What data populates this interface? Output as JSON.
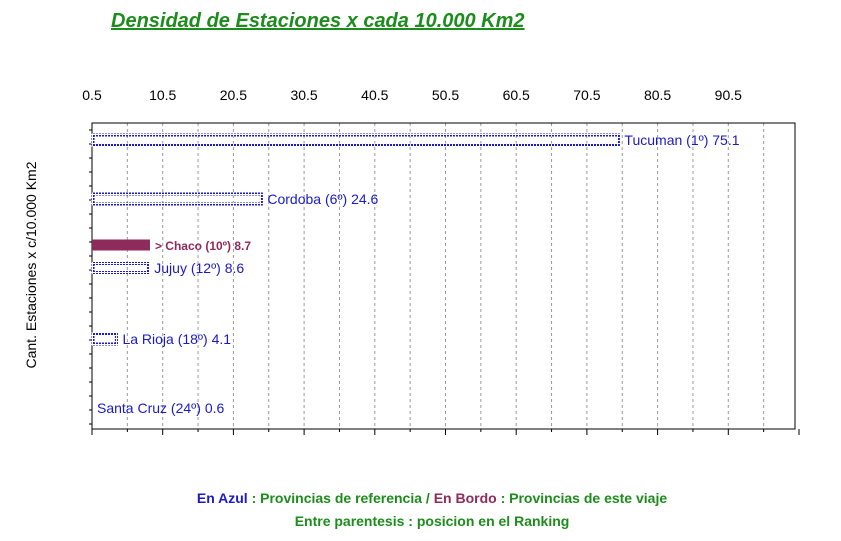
{
  "chart_data": {
    "type": "bar",
    "orientation": "horizontal",
    "title": "Densidad de Estaciones x cada 10.000 Km2",
    "ylabel": "Cant. Estaciones x c/10.000 Km2",
    "xlabel": "",
    "x_ticks": [
      "0.5",
      "10.5",
      "20.5",
      "30.5",
      "40.5",
      "50.5",
      "60.5",
      "70.5",
      "80.5",
      "90.5"
    ],
    "xlim": [
      0.5,
      100.5
    ],
    "grid": "vertical dashed",
    "categories": [
      "Tucuman (1º)",
      "Cordoba (6º)",
      "Chaco (10º)",
      "Jujuy (12º)",
      "La Rioja (18º)",
      "Santa Cruz (24º)"
    ],
    "values": [
      75.1,
      24.6,
      8.7,
      8.6,
      4.1,
      0.6
    ],
    "labels": [
      "Tucuman (1º) 75.1",
      "Cordoba (6º) 24.6",
      "> Chaco (10º) 8.7",
      "Jujuy (12º) 8.6",
      "La Rioja (18º) 4.1",
      "Santa Cruz (24º) 0.6"
    ],
    "groups": [
      "referencia",
      "referencia",
      "viaje",
      "referencia",
      "referencia",
      "referencia"
    ],
    "colors": {
      "referencia": "#1a1ac8",
      "viaje": "#8e2a5c",
      "grid": "#9a9a9a",
      "title": "#1c8c1c"
    }
  },
  "footer": {
    "line1": {
      "azul_label": "En Azul",
      "sep1": " : ",
      "azul_desc": "Provincias de referencia",
      "slash": " / ",
      "bordo_label": "En Bordo",
      "sep2": " : ",
      "bordo_desc": "Provincias de este viaje"
    },
    "line2": "Entre parentesis : posicion en el Ranking"
  }
}
